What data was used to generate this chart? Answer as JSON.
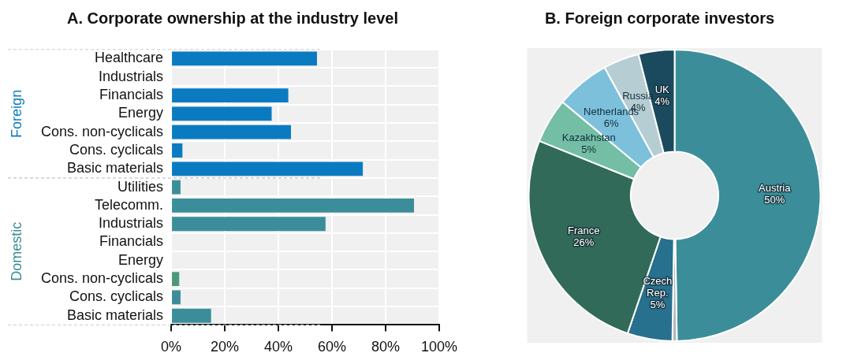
{
  "chart_data": [
    {
      "type": "bar",
      "title": "A. Corporate ownership at the industry level",
      "orientation": "horizontal",
      "categories": [
        "Healthcare",
        "Industrials",
        "Financials",
        "Energy",
        "Cons. non-cyclicals",
        "Cons. cyclicals",
        "Basic materials",
        "Utilities",
        "Telecomm.",
        "Industrials",
        "Financials",
        "Energy",
        "Cons. non-cyclicals",
        "Cons. cyclicals",
        "Basic materials"
      ],
      "series": [
        {
          "name": "Foreign",
          "color": "#0a7bc1",
          "values": [
            54.4,
            0,
            43.7,
            37.5,
            44.7,
            4.2,
            71.5,
            null,
            null,
            null,
            null,
            null,
            null,
            null,
            null
          ]
        },
        {
          "name": "Domestic",
          "color": "#3b8e99",
          "colors": [
            "#3b8e99",
            "#3b8e99",
            "#3b8e99",
            "#3b8e99",
            "#3b8e99",
            "#3b8e99",
            "#3b8e99",
            "#3b8e99",
            "#3b8e99",
            "#3b8e99",
            "#3b8e99",
            "#3b8e99",
            "#4a9a7a",
            "#3b8e99",
            "#3b8e99"
          ],
          "values": [
            null,
            null,
            null,
            null,
            null,
            null,
            null,
            3.5,
            90.6,
            57.6,
            0,
            0,
            3,
            3.5,
            14.9
          ]
        }
      ],
      "xlim": [
        0,
        100
      ],
      "xticks": [
        {
          "value": 0,
          "label": "0%"
        },
        {
          "value": 20,
          "label": "20%"
        },
        {
          "value": 40,
          "label": "40%"
        },
        {
          "value": 60,
          "label": "60%"
        },
        {
          "value": 80,
          "label": "80%"
        },
        {
          "value": 100,
          "label": "100%"
        }
      ],
      "grid": true,
      "legend": false
    },
    {
      "type": "donut",
      "title": "B. Foreign corporate investors",
      "categories": [
        "Austria\n50%",
        null,
        "Czech\nRep.\n5%",
        "France\n26%",
        "Kazakhstan\n5%",
        "Netherlands\n6%",
        "Russia\n4%",
        "UK\n4%"
      ],
      "values": [
        50,
        0.5,
        5,
        26,
        5,
        6,
        4,
        4
      ],
      "colors": [
        "#3b8e99",
        "#b0b8bc",
        "#27708e",
        "#316a58",
        "#74bea5",
        "#7dc0dc",
        "#b5cdd3",
        "#1b4a5e"
      ],
      "legend": false
    }
  ]
}
